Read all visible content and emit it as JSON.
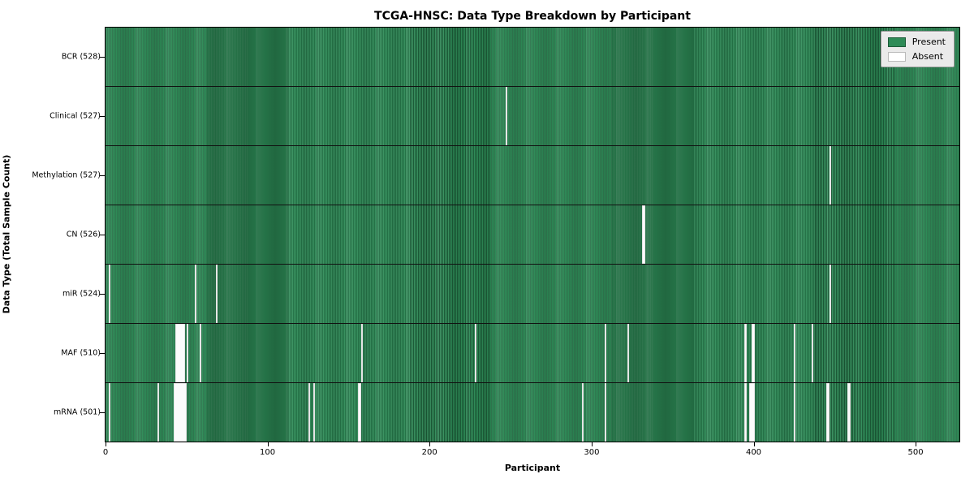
{
  "chart_data": {
    "type": "heatmap",
    "title": "TCGA-HNSC: Data Type Breakdown by Participant",
    "xlabel": "Participant",
    "ylabel": "Data Type (Total Sample Count)",
    "n_participants": 528,
    "x_ticks": [
      0,
      100,
      200,
      300,
      400,
      500
    ],
    "xlim": [
      0,
      528
    ],
    "grid": false,
    "legend_position": "upper right",
    "colors": {
      "present": "#2e8b57",
      "absent": "#ffffff",
      "row_divider": "#111111"
    },
    "legend": [
      {
        "label": "Present",
        "color": "#2e8b57"
      },
      {
        "label": "Absent",
        "color": "#ffffff"
      }
    ],
    "rows": [
      {
        "label": "BCR (528)",
        "data_type": "BCR",
        "present_count": 528,
        "absent_participants": []
      },
      {
        "label": "Clinical (527)",
        "data_type": "Clinical",
        "present_count": 527,
        "absent_participants": [
          247
        ]
      },
      {
        "label": "Methylation (527)",
        "data_type": "Methylation",
        "present_count": 527,
        "absent_participants": [
          447
        ]
      },
      {
        "label": "CN (526)",
        "data_type": "CN",
        "present_count": 526,
        "absent_participants": [
          331,
          332
        ]
      },
      {
        "label": "miR (524)",
        "data_type": "miR",
        "present_count": 524,
        "absent_participants": [
          2,
          55,
          68,
          447
        ]
      },
      {
        "label": "MAF (510)",
        "data_type": "MAF",
        "present_count": 510,
        "absent_participants": [
          43,
          44,
          45,
          46,
          47,
          48,
          50,
          58,
          158,
          228,
          308,
          322,
          394,
          395,
          399,
          400,
          425,
          436
        ]
      },
      {
        "label": "mRNA (501)",
        "data_type": "mRNA",
        "present_count": 501,
        "absent_participants": [
          2,
          32,
          42,
          43,
          44,
          45,
          46,
          47,
          48,
          49,
          125,
          128,
          156,
          157,
          294,
          308,
          394,
          395,
          397,
          398,
          399,
          400,
          425,
          445,
          446,
          458,
          459
        ]
      }
    ]
  }
}
